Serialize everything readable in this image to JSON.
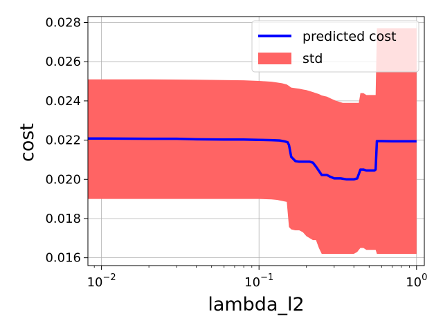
{
  "chart_data": {
    "type": "line",
    "xlabel": "lambda_l2",
    "ylabel": "cost",
    "x_scale": "log",
    "xlim": [
      0.0082,
      1.12
    ],
    "ylim": [
      0.0156,
      0.0283
    ],
    "grid": true,
    "legend_position": "top-right",
    "x_ticks": [
      {
        "value": 0.01,
        "base": "10",
        "exp": "−2"
      },
      {
        "value": 0.1,
        "base": "10",
        "exp": "−1"
      },
      {
        "value": 1.0,
        "base": "10",
        "exp": "0"
      }
    ],
    "y_ticks": [
      0.016,
      0.018,
      0.02,
      0.022,
      0.024,
      0.026,
      0.028
    ],
    "y_tick_labels": [
      "0.016",
      "0.018",
      "0.020",
      "0.022",
      "0.024",
      "0.026",
      "0.028"
    ],
    "series": [
      {
        "name": "predicted cost",
        "kind": "line",
        "color": "#0000ff",
        "x": [
          0.0082,
          0.01,
          0.02,
          0.03,
          0.04,
          0.06,
          0.08,
          0.1,
          0.12,
          0.135,
          0.145,
          0.152,
          0.155,
          0.16,
          0.17,
          0.18,
          0.19,
          0.2,
          0.21,
          0.22,
          0.23,
          0.25,
          0.27,
          0.28,
          0.3,
          0.33,
          0.36,
          0.4,
          0.42,
          0.44,
          0.46,
          0.48,
          0.5,
          0.52,
          0.54,
          0.55,
          0.56,
          0.6,
          0.7,
          0.8,
          0.9,
          1.0
        ],
        "y": [
          0.02208,
          0.02208,
          0.02207,
          0.02207,
          0.02204,
          0.02203,
          0.02203,
          0.02201,
          0.022,
          0.02198,
          0.02194,
          0.02189,
          0.02175,
          0.02115,
          0.02093,
          0.0209,
          0.0209,
          0.0209,
          0.0209,
          0.02085,
          0.02065,
          0.02022,
          0.02022,
          0.02015,
          0.02005,
          0.02005,
          0.02,
          0.02,
          0.02005,
          0.0205,
          0.0205,
          0.02045,
          0.02045,
          0.02045,
          0.02045,
          0.0205,
          0.02195,
          0.02195,
          0.02194,
          0.02194,
          0.02194,
          0.02194
        ]
      },
      {
        "name": "std",
        "kind": "band",
        "color": "#ff6464",
        "x": [
          0.0082,
          0.01,
          0.02,
          0.04,
          0.06,
          0.08,
          0.1,
          0.12,
          0.13,
          0.14,
          0.15,
          0.155,
          0.16,
          0.17,
          0.18,
          0.19,
          0.2,
          0.22,
          0.23,
          0.24,
          0.25,
          0.27,
          0.29,
          0.31,
          0.34,
          0.37,
          0.4,
          0.42,
          0.43,
          0.44,
          0.46,
          0.48,
          0.5,
          0.53,
          0.55,
          0.56,
          0.6,
          0.7,
          0.8,
          0.9,
          1.0
        ],
        "upper": [
          0.0251,
          0.0251,
          0.0251,
          0.02508,
          0.02506,
          0.02505,
          0.02502,
          0.02498,
          0.02494,
          0.0249,
          0.02484,
          0.02476,
          0.02468,
          0.02465,
          0.02462,
          0.02458,
          0.02455,
          0.02445,
          0.0244,
          0.02435,
          0.02428,
          0.02422,
          0.0241,
          0.024,
          0.0239,
          0.0239,
          0.0239,
          0.0239,
          0.0239,
          0.0244,
          0.0244,
          0.0243,
          0.0243,
          0.0243,
          0.0243,
          0.0277,
          0.0277,
          0.0277,
          0.0277,
          0.0277,
          0.0277
        ],
        "lower": [
          0.019,
          0.019,
          0.019,
          0.019,
          0.019,
          0.019,
          0.019,
          0.01898,
          0.01895,
          0.0189,
          0.01885,
          0.01757,
          0.01745,
          0.0174,
          0.0174,
          0.0173,
          0.0171,
          0.0169,
          0.0169,
          0.0165,
          0.0162,
          0.0162,
          0.0162,
          0.0162,
          0.0162,
          0.0162,
          0.0162,
          0.0163,
          0.0164,
          0.0165,
          0.0165,
          0.0164,
          0.0164,
          0.0164,
          0.0164,
          0.0162,
          0.0162,
          0.0162,
          0.0162,
          0.0162,
          0.0162
        ]
      }
    ]
  }
}
